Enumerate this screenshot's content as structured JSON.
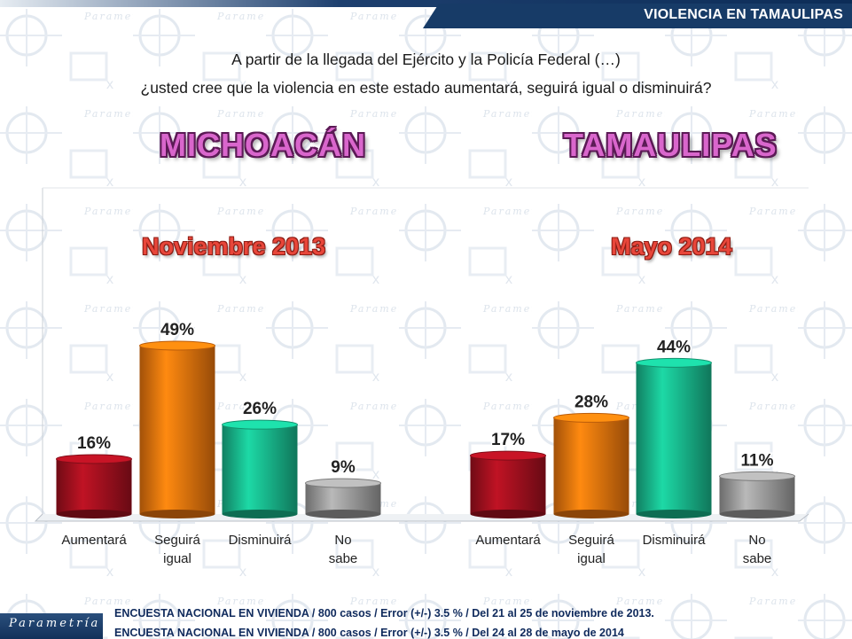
{
  "header": {
    "section_title": "VIOLENCIA EN TAMAULIPAS"
  },
  "question": {
    "line1": "A partir de la llegada del Ejército y la Policía Federal (…)",
    "line2": "¿usted cree que la violencia en este estado aumentará, seguirá igual o disminuirá?"
  },
  "titles": {
    "left_state": "MICHOACÁN",
    "right_state": "TAMAULIPAS"
  },
  "chart_data": {
    "type": "bar",
    "ylim": [
      0,
      90
    ],
    "groups": [
      {
        "state": "MICHOACÁN",
        "period": "Noviembre 2013",
        "categories": [
          "Aumentará",
          "Seguirá igual",
          "Disminuirá",
          "No sabe"
        ],
        "values": [
          16,
          49,
          26,
          9
        ],
        "labels": [
          "16%",
          "49%",
          "26%",
          "9%"
        ]
      },
      {
        "state": "TAMAULIPAS",
        "period": "Mayo 2014",
        "categories": [
          "Aumentará",
          "Seguirá igual",
          "Disminuirá",
          "No sabe"
        ],
        "values": [
          17,
          28,
          44,
          11
        ],
        "labels": [
          "17%",
          "28%",
          "44%",
          "11%"
        ]
      }
    ],
    "colors": [
      "#a0101e",
      "#e8730d",
      "#18b58a",
      "#9a9a9a"
    ]
  },
  "footer": {
    "line1": "ENCUESTA NACIONAL EN VIVIENDA / 800 casos / Error (+/-) 3.5 % / Del 21 al 25 de noviembre de 2013.",
    "line2": "ENCUESTA NACIONAL EN VIVIENDA / 800 casos / Error (+/-) 3.5 % / Del 24 al 28 de mayo de 2014"
  },
  "logo": "Parametría"
}
